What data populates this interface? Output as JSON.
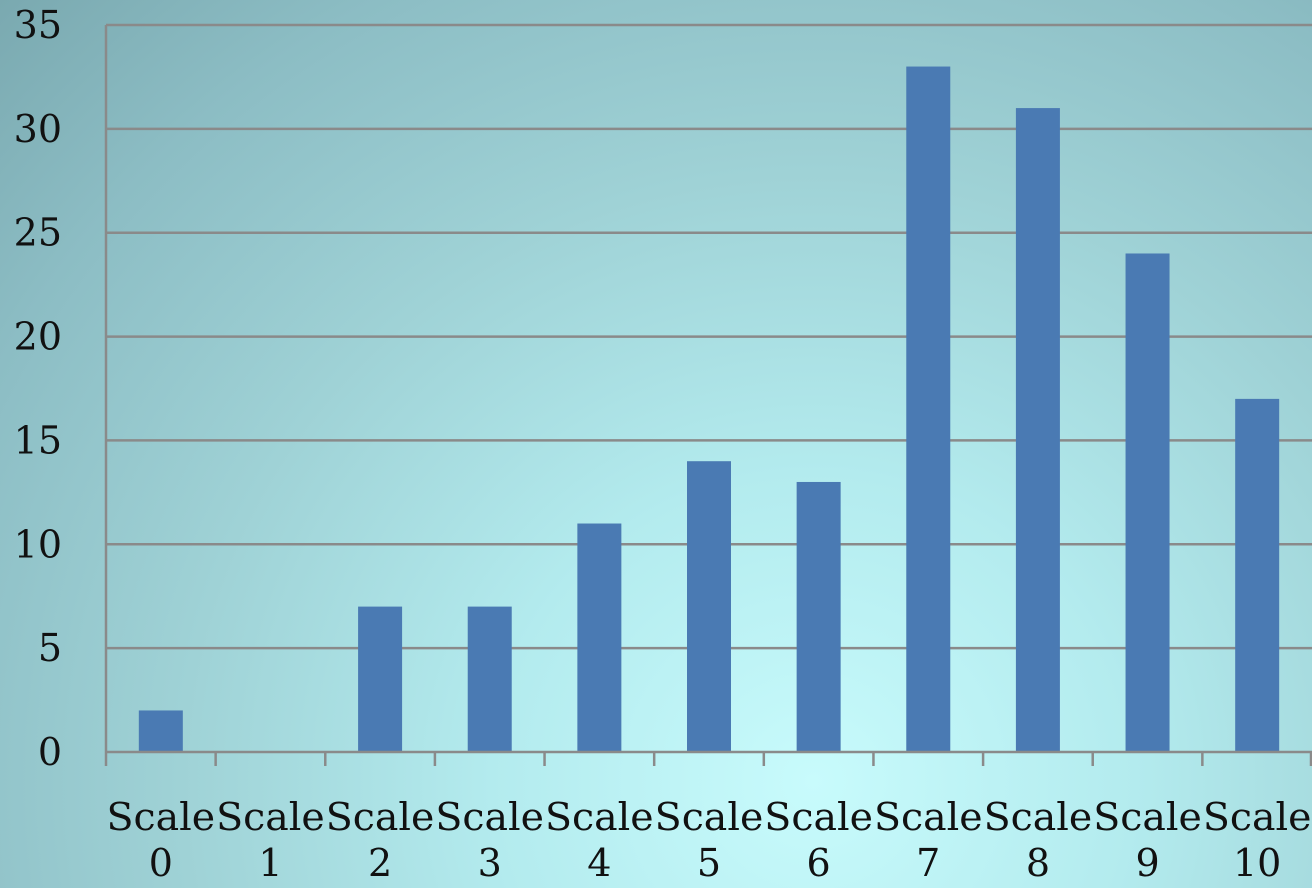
{
  "chart_data": {
    "type": "bar",
    "categories": [
      "Scale 0",
      "Scale 1",
      "Scale 2",
      "Scale 3",
      "Scale 4",
      "Scale 5",
      "Scale 6",
      "Scale 7",
      "Scale 8",
      "Scale 9",
      "Scale 10"
    ],
    "category_lines": [
      [
        "Scale",
        "0"
      ],
      [
        "Scale",
        "1"
      ],
      [
        "Scale",
        "2"
      ],
      [
        "Scale",
        "3"
      ],
      [
        "Scale",
        "4"
      ],
      [
        "Scale",
        "5"
      ],
      [
        "Scale",
        "6"
      ],
      [
        "Scale",
        "7"
      ],
      [
        "Scale",
        "8"
      ],
      [
        "Scale",
        "9"
      ],
      [
        "Scale",
        "10"
      ]
    ],
    "values": [
      2,
      0,
      7,
      7,
      11,
      14,
      13,
      33,
      31,
      24,
      17
    ],
    "yticks": [
      0,
      5,
      10,
      15,
      20,
      25,
      30,
      35
    ],
    "ylim": [
      0,
      35
    ],
    "grid": true,
    "legend": "none",
    "bar_color": "#4a7ab3",
    "grid_color": "#8a8a8a",
    "axis_color": "#8a8a8a"
  }
}
